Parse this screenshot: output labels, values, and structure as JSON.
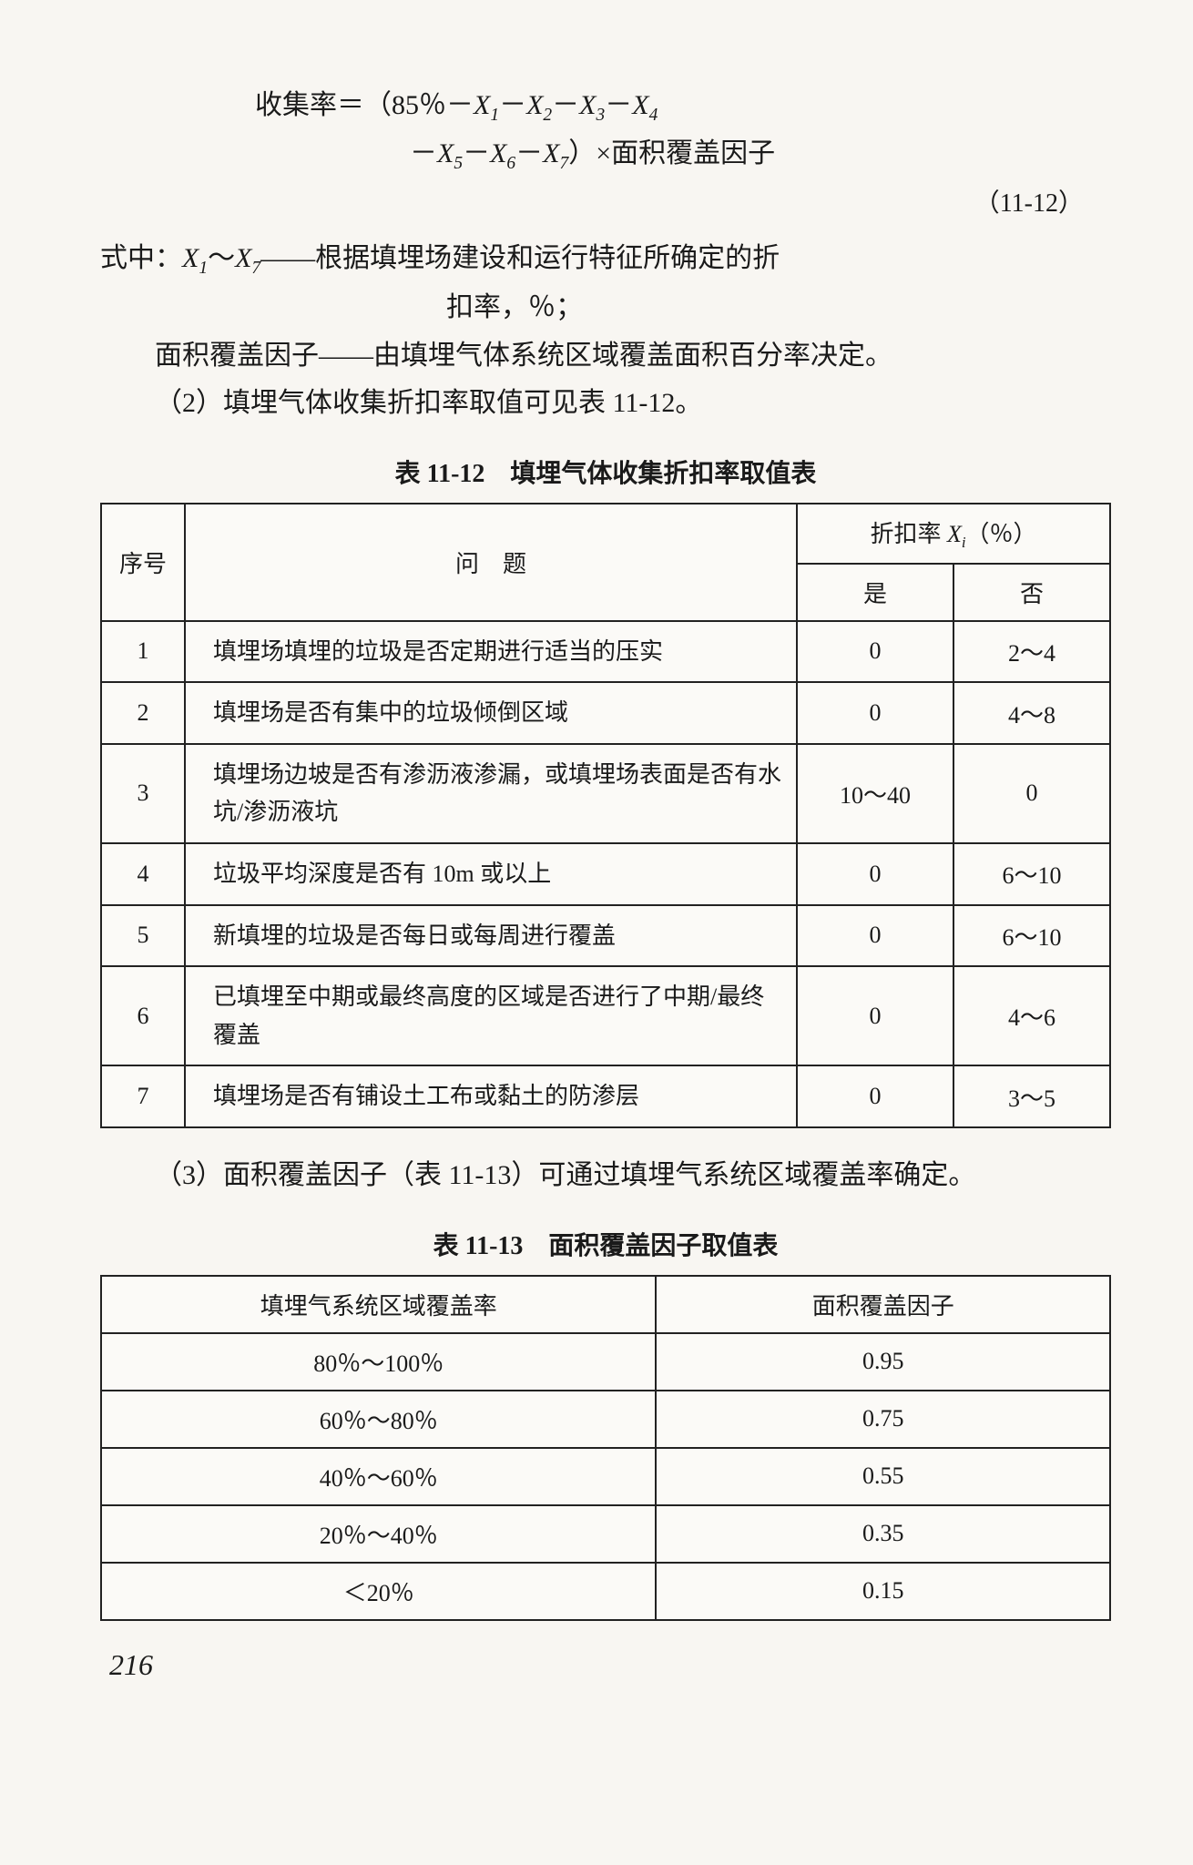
{
  "formula": {
    "line1_pre": "收集率＝（85％－",
    "x": "X",
    "sep": "－",
    "line2_tail": "）×面积覆盖因子",
    "eq_num": "（11-12）"
  },
  "definitions": {
    "line1": "式中：",
    "x1x7": "X",
    "range_connector": "～",
    "dash": "——",
    "def1": "根据填埋场建设和运行特征所确定的折",
    "def1b": "扣率，％；",
    "line2_label": "面积覆盖因子",
    "def2": "由填埋气体系统区域覆盖面积百分率决定。"
  },
  "para2": "（2）填埋气体收集折扣率取值可见表 11-12。",
  "table1": {
    "title": "表 11-12　填埋气体收集折扣率取值表",
    "head": {
      "seq": "序号",
      "q": "问　题",
      "rate_label_pre": "折扣率 ",
      "rate_label_post": "（％）",
      "yes": "是",
      "no": "否"
    },
    "rows": [
      {
        "n": "1",
        "q": "填埋场填埋的垃圾是否定期进行适当的压实",
        "y": "0",
        "no": "2～4"
      },
      {
        "n": "2",
        "q": "填埋场是否有集中的垃圾倾倒区域",
        "y": "0",
        "no": "4～8"
      },
      {
        "n": "3",
        "q": "填埋场边坡是否有渗沥液渗漏，或填埋场表面是否有水坑/渗沥液坑",
        "y": "10～40",
        "no": "0"
      },
      {
        "n": "4",
        "q": "垃圾平均深度是否有 10m 或以上",
        "y": "0",
        "no": "6～10"
      },
      {
        "n": "5",
        "q": "新填埋的垃圾是否每日或每周进行覆盖",
        "y": "0",
        "no": "6～10"
      },
      {
        "n": "6",
        "q": "已填埋至中期或最终高度的区域是否进行了中期/最终覆盖",
        "y": "0",
        "no": "4～6"
      },
      {
        "n": "7",
        "q": "填埋场是否有铺设土工布或黏土的防渗层",
        "y": "0",
        "no": "3～5"
      }
    ]
  },
  "para3": "（3）面积覆盖因子（表 11-13）可通过填埋气系统区域覆盖率确定。",
  "table2": {
    "title": "表 11-13　面积覆盖因子取值表",
    "head": {
      "cov": "填埋气系统区域覆盖率",
      "factor": "面积覆盖因子"
    },
    "rows": [
      {
        "c": "80％～100％",
        "f": "0.95"
      },
      {
        "c": "60％～80％",
        "f": "0.75"
      },
      {
        "c": "40％～60％",
        "f": "0.55"
      },
      {
        "c": "20％～40％",
        "f": "0.35"
      },
      {
        "c": "＜20％",
        "f": "0.15"
      }
    ]
  },
  "page_number": "216"
}
